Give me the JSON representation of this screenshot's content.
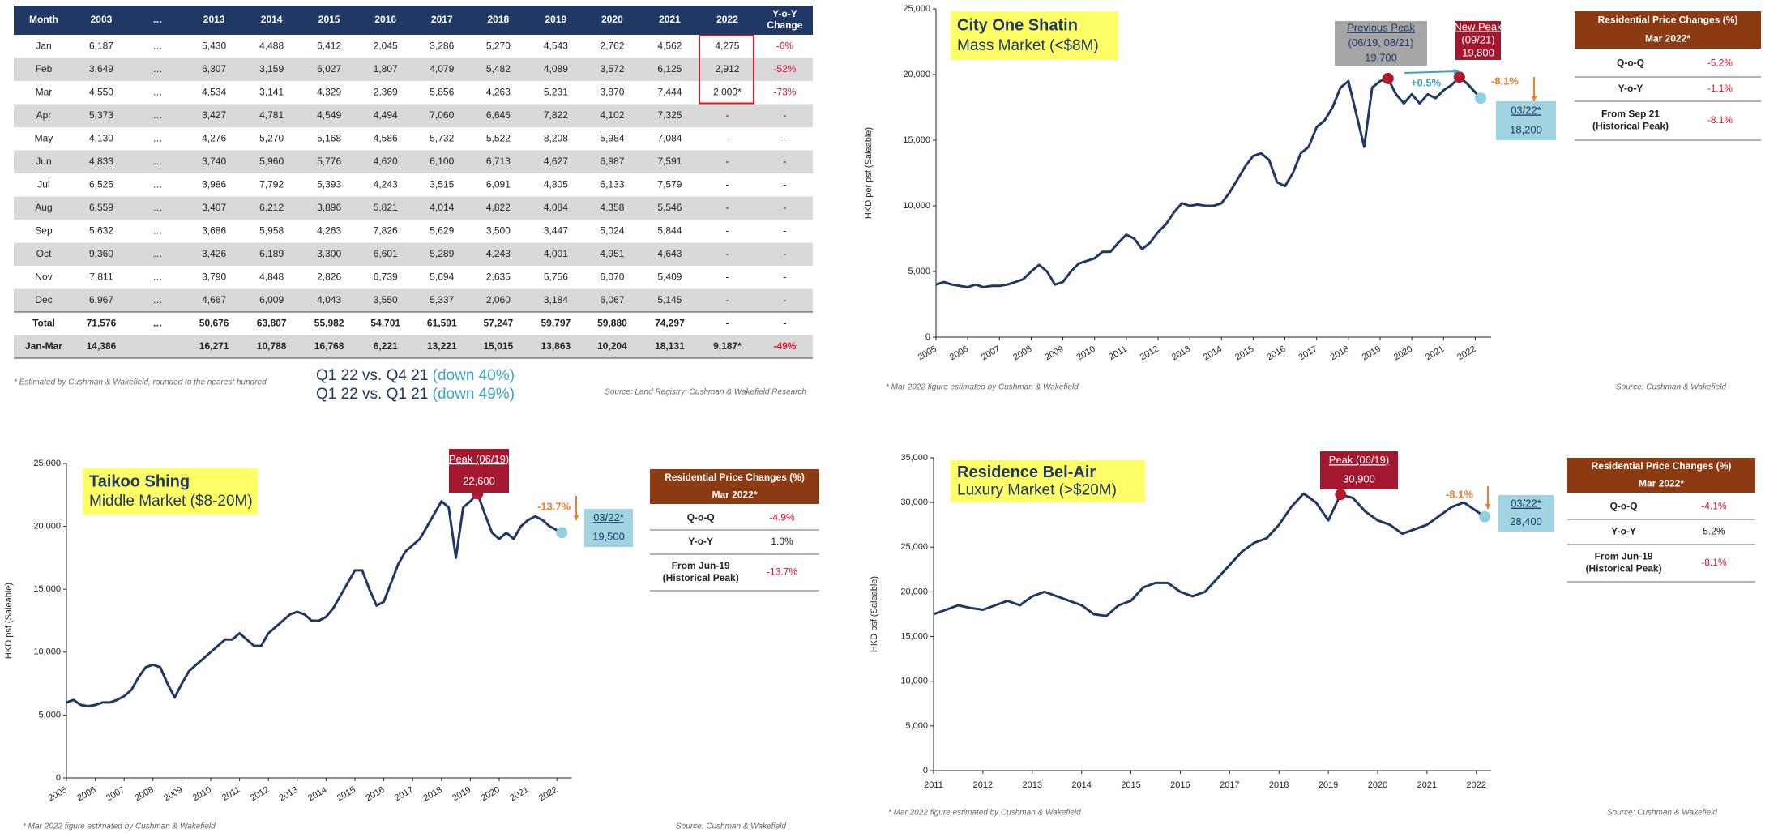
{
  "table": {
    "header": [
      "Month",
      "2003",
      "…",
      "2013",
      "2014",
      "2015",
      "2016",
      "2017",
      "2018",
      "2019",
      "2020",
      "2021",
      "2022",
      [
        "Y-o-Y",
        "Change"
      ]
    ],
    "rows": [
      [
        "Jan",
        "6,187",
        "…",
        "5,430",
        "4,488",
        "6,412",
        "2,045",
        "3,286",
        "5,270",
        "4,543",
        "2,762",
        "4,562",
        "4,275",
        "-6%"
      ],
      [
        "Feb",
        "3,649",
        "…",
        "6,307",
        "3,159",
        "6,027",
        "1,807",
        "4,079",
        "5,482",
        "4,089",
        "3,572",
        "6,125",
        "2,912",
        "-52%"
      ],
      [
        "Mar",
        "4,550",
        "…",
        "4,534",
        "3,141",
        "4,329",
        "2,369",
        "5,856",
        "4,263",
        "5,231",
        "3,870",
        "7,444",
        "2,000*",
        "-73%"
      ],
      [
        "Apr",
        "5,373",
        "…",
        "3,427",
        "4,781",
        "4,549",
        "4,494",
        "7,060",
        "6,646",
        "7,822",
        "4,102",
        "7,325",
        "-",
        "-"
      ],
      [
        "May",
        "4,130",
        "…",
        "4,276",
        "5,270",
        "5,168",
        "4,586",
        "5,732",
        "5,522",
        "8,208",
        "5,984",
        "7,084",
        "-",
        "-"
      ],
      [
        "Jun",
        "4,833",
        "…",
        "3,740",
        "5,960",
        "5,776",
        "4,620",
        "6,100",
        "6,713",
        "4,627",
        "6,987",
        "7,591",
        "-",
        "-"
      ],
      [
        "Jul",
        "6,525",
        "…",
        "3,986",
        "7,792",
        "5,393",
        "4,243",
        "3,515",
        "6,091",
        "4,805",
        "6,133",
        "7,579",
        "-",
        "-"
      ],
      [
        "Aug",
        "6,559",
        "…",
        "3,407",
        "6,212",
        "3,896",
        "5,821",
        "4,014",
        "4,822",
        "4,084",
        "4,358",
        "5,546",
        "-",
        "-"
      ],
      [
        "Sep",
        "5,632",
        "…",
        "3,686",
        "5,958",
        "4,263",
        "7,826",
        "5,629",
        "3,500",
        "3,447",
        "5,024",
        "5,844",
        "-",
        "-"
      ],
      [
        "Oct",
        "9,360",
        "…",
        "3,426",
        "6,189",
        "3,300",
        "6,601",
        "5,289",
        "4,243",
        "4,001",
        "4,951",
        "4,643",
        "-",
        "-"
      ],
      [
        "Nov",
        "7,811",
        "…",
        "3,790",
        "4,848",
        "2,826",
        "6,739",
        "5,694",
        "2,635",
        "5,756",
        "6,070",
        "5,409",
        "-",
        "-"
      ],
      [
        "Dec",
        "6,967",
        "…",
        "4,667",
        "6,009",
        "4,043",
        "3,550",
        "5,337",
        "2,060",
        "3,184",
        "6,067",
        "5,145",
        "-",
        "-"
      ],
      [
        "Total",
        "71,576",
        "…",
        "50,676",
        "63,807",
        "55,982",
        "54,701",
        "61,591",
        "57,247",
        "59,797",
        "59,880",
        "74,297",
        "-",
        "-"
      ],
      [
        "Jan-Mar",
        "14,386",
        null,
        "16,271",
        "10,788",
        "16,768",
        "6,221",
        "13,221",
        "15,015",
        "13,863",
        "10,204",
        "18,131",
        "9,187*",
        "-49%"
      ]
    ],
    "footnote": "* Estimated by Cushman & Wakefield, rounded to the nearest hundred",
    "comparisons": [
      [
        "Q1 22 vs. Q4 21",
        "(down 40%)"
      ],
      [
        "Q1 22 vs. Q1 21",
        "(down 49%)"
      ]
    ],
    "source": "Source: Land Registry; Cushman & Wakefield Research"
  },
  "chart_data": [
    {
      "type": "line",
      "title": "City One Shatin",
      "subtitle": "Mass Market (<$8M)",
      "ylabel": "HKD per psf (Saleable)",
      "x": [
        2005,
        2005.25,
        2005.5,
        2005.75,
        2006,
        2006.25,
        2006.5,
        2006.75,
        2007,
        2007.25,
        2007.5,
        2007.75,
        2008,
        2008.25,
        2008.5,
        2008.75,
        2009,
        2009.25,
        2009.5,
        2009.75,
        2010,
        2010.25,
        2010.5,
        2010.75,
        2011,
        2011.25,
        2011.5,
        2011.75,
        2012,
        2012.25,
        2012.5,
        2012.75,
        2013,
        2013.25,
        2013.5,
        2013.75,
        2014,
        2014.25,
        2014.5,
        2014.75,
        2015,
        2015.25,
        2015.5,
        2015.75,
        2016,
        2016.25,
        2016.5,
        2016.75,
        2017,
        2017.25,
        2017.5,
        2017.75,
        2018,
        2018.25,
        2018.5,
        2018.75,
        2019,
        2019.25,
        2019.5,
        2019.75,
        2020,
        2020.25,
        2020.5,
        2020.75,
        2021,
        2021.25,
        2021.5,
        2021.75,
        2022.17
      ],
      "xlim": [
        2005,
        2022.5
      ],
      "xticks": [
        2005,
        2006,
        2007,
        2008,
        2009,
        2010,
        2011,
        2012,
        2013,
        2014,
        2015,
        2016,
        2017,
        2018,
        2019,
        2020,
        2021,
        2022
      ],
      "ylim": [
        0,
        25000
      ],
      "yticks": [
        0,
        {
          "value": 5000,
          "label": "5,000"
        },
        {
          "value": 10000,
          "label": "10,000"
        },
        {
          "value": 15000,
          "label": "15,000"
        },
        {
          "value": 20000,
          "label": "20,000"
        },
        {
          "value": 25000,
          "label": "25,000"
        }
      ],
      "series": [
        {
          "color": "#1f3864",
          "values": [
            4000,
            4200,
            4000,
            3900,
            3800,
            4000,
            3800,
            3900,
            3900,
            4000,
            4200,
            4400,
            5000,
            5500,
            5000,
            4000,
            4200,
            5000,
            5600,
            5800,
            6000,
            6500,
            6500,
            7200,
            7800,
            7500,
            6700,
            7200,
            8000,
            8600,
            9500,
            10200,
            10000,
            10100,
            10000,
            10000,
            10200,
            11000,
            12000,
            13000,
            13800,
            14000,
            13500,
            11800,
            11500,
            12500,
            14000,
            14500,
            16000,
            16500,
            17500,
            19000,
            19500,
            17000,
            14500,
            19000,
            19500,
            19700,
            18500,
            17800,
            18500,
            17800,
            18500,
            18200,
            18800,
            19200,
            19800,
            19300,
            18200
          ]
        }
      ],
      "annotations": [
        {
          "lines": [
            "Previous Peak",
            "(06/19, 08/21)",
            "19,700"
          ],
          "color": "#a6a6a6"
        },
        {
          "lines": [
            "New Peak",
            "(09/21)",
            "19,800"
          ],
          "color": "#a3182f"
        },
        {
          "text": "+0.5%",
          "color": "#3ba3c6"
        },
        {
          "text": "-8.1%",
          "color": "#f07c28"
        },
        {
          "lines": [
            "03/22*",
            "18,200"
          ],
          "color": "#9fd4e0"
        }
      ],
      "summary": {
        "title": [
          "Residential Price Changes (%)",
          "Mar 2022*"
        ],
        "rows": [
          {
            "label": [
              "Q-o-Q"
            ],
            "value": "-5.2%"
          },
          {
            "label": [
              "Y-o-Y"
            ],
            "value": "-1.1%"
          },
          {
            "label": [
              "From Sep 21",
              "(Historical Peak)"
            ],
            "value": "-8.1%"
          }
        ]
      },
      "footnote": "* Mar 2022 figure estimated by Cushman & Wakefield",
      "source": "Source: Cushman & Wakefield"
    },
    {
      "type": "line",
      "title": "Taikoo Shing",
      "subtitle": "Middle Market ($8-20M)",
      "ylabel": "HKD psf (Saleable)",
      "x": [
        2005,
        2005.25,
        2005.5,
        2005.75,
        2006,
        2006.25,
        2006.5,
        2006.75,
        2007,
        2007.25,
        2007.5,
        2007.75,
        2008,
        2008.25,
        2008.5,
        2008.75,
        2009,
        2009.25,
        2009.5,
        2009.75,
        2010,
        2010.25,
        2010.5,
        2010.75,
        2011,
        2011.25,
        2011.5,
        2011.75,
        2012,
        2012.25,
        2012.5,
        2012.75,
        2013,
        2013.25,
        2013.5,
        2013.75,
        2014,
        2014.25,
        2014.5,
        2014.75,
        2015,
        2015.25,
        2015.5,
        2015.75,
        2016,
        2016.25,
        2016.5,
        2016.75,
        2017,
        2017.25,
        2017.5,
        2017.75,
        2018,
        2018.25,
        2018.5,
        2018.75,
        2019,
        2019.25,
        2019.5,
        2019.75,
        2020,
        2020.25,
        2020.5,
        2020.75,
        2021,
        2021.25,
        2021.5,
        2021.75,
        2022.17
      ],
      "xlim": [
        2005,
        2022.5
      ],
      "xticks": [
        2005,
        2006,
        2007,
        2008,
        2009,
        2010,
        2011,
        2012,
        2013,
        2014,
        2015,
        2016,
        2017,
        2018,
        2019,
        2020,
        2021,
        2022
      ],
      "ylim": [
        0,
        25000
      ],
      "yticks": [
        0,
        {
          "value": 5000,
          "label": "5,000"
        },
        {
          "value": 10000,
          "label": "10,000"
        },
        {
          "value": 15000,
          "label": "15,000"
        },
        {
          "value": 20000,
          "label": "20,000"
        },
        {
          "value": 25000,
          "label": "25,000"
        }
      ],
      "series": [
        {
          "color": "#1f3864",
          "values": [
            6000,
            6200,
            5800,
            5700,
            5800,
            6000,
            6000,
            6200,
            6500,
            7000,
            8000,
            8800,
            9000,
            8800,
            7500,
            6400,
            7500,
            8500,
            9000,
            9500,
            10000,
            10500,
            11000,
            11000,
            11500,
            11000,
            10500,
            10500,
            11500,
            12000,
            12500,
            13000,
            13200,
            13000,
            12500,
            12500,
            12800,
            13500,
            14500,
            15500,
            16500,
            16500,
            15000,
            13700,
            14000,
            15500,
            17000,
            18000,
            18500,
            19000,
            20000,
            21000,
            22000,
            21500,
            17500,
            21500,
            22000,
            22600,
            21000,
            19500,
            19000,
            19500,
            19000,
            20000,
            20500,
            20800,
            20500,
            20000,
            19500
          ]
        }
      ],
      "annotations": [
        {
          "lines": [
            "Peak (06/19)",
            "22,600"
          ],
          "color": "#a3182f"
        },
        {
          "text": "-13.7%",
          "color": "#f07c28"
        },
        {
          "lines": [
            "03/22*",
            "19,500"
          ],
          "color": "#9fd4e0"
        }
      ],
      "summary": {
        "title": [
          "Residential Price Changes (%)",
          "Mar 2022*"
        ],
        "rows": [
          {
            "label": [
              "Q-o-Q"
            ],
            "value": "-4.9%"
          },
          {
            "label": [
              "Y-o-Y"
            ],
            "value": "1.0%"
          },
          {
            "label": [
              "From Jun-19",
              "(Historical Peak)"
            ],
            "value": "-13.7%"
          }
        ]
      },
      "footnote": "* Mar 2022 figure estimated by Cushman & Wakefield",
      "source": "Source: Cushman & Wakefield"
    },
    {
      "type": "line",
      "title": "Residence Bel-Air",
      "subtitle": "Luxury Market (>$20M)",
      "ylabel": "HKD psf (Saleable)",
      "x": [
        2011,
        2011.25,
        2011.5,
        2011.75,
        2012,
        2012.25,
        2012.5,
        2012.75,
        2013,
        2013.25,
        2013.5,
        2013.75,
        2014,
        2014.25,
        2014.5,
        2014.75,
        2015,
        2015.25,
        2015.5,
        2015.75,
        2016,
        2016.25,
        2016.5,
        2016.75,
        2017,
        2017.25,
        2017.5,
        2017.75,
        2018,
        2018.25,
        2018.5,
        2018.75,
        2019,
        2019.25,
        2019.5,
        2019.75,
        2020,
        2020.25,
        2020.5,
        2020.75,
        2021,
        2021.25,
        2021.5,
        2021.75,
        2022.17
      ],
      "xlim": [
        2011,
        2022.3
      ],
      "xticks": [
        2011,
        2012,
        2013,
        2014,
        2015,
        2016,
        2017,
        2018,
        2019,
        2020,
        2021,
        2022
      ],
      "ylim": [
        0,
        35000
      ],
      "yticks": [
        0,
        {
          "value": 5000,
          "label": "5,000"
        },
        {
          "value": 10000,
          "label": "10,000"
        },
        {
          "value": 15000,
          "label": "15,000"
        },
        {
          "value": 20000,
          "label": "20,000"
        },
        {
          "value": 25000,
          "label": "25,000"
        },
        {
          "value": 30000,
          "label": "30,000"
        },
        {
          "value": 35000,
          "label": "35,000"
        }
      ],
      "series": [
        {
          "color": "#1f3864",
          "values": [
            17500,
            18000,
            18500,
            18200,
            18000,
            18500,
            19000,
            18500,
            19500,
            20000,
            19500,
            19000,
            18500,
            17500,
            17300,
            18500,
            19000,
            20500,
            21000,
            21000,
            20000,
            19500,
            20000,
            21500,
            23000,
            24500,
            25500,
            26000,
            27500,
            29500,
            31000,
            30000,
            28000,
            30900,
            30500,
            29000,
            28000,
            27500,
            26500,
            27000,
            27500,
            28500,
            29500,
            30000,
            28400
          ]
        }
      ],
      "annotations": [
        {
          "lines": [
            "Peak (06/19)",
            "30,900"
          ],
          "color": "#a3182f"
        },
        {
          "text": "-8.1%",
          "color": "#f07c28"
        },
        {
          "lines": [
            "03/22*",
            "28,400"
          ],
          "color": "#9fd4e0"
        }
      ],
      "summary": {
        "title": [
          "Residential Price Changes (%)",
          "Mar 2022*"
        ],
        "rows": [
          {
            "label": [
              "Q-o-Q"
            ],
            "value": "-4.1%"
          },
          {
            "label": [
              "Y-o-Y"
            ],
            "value": "5.2%"
          },
          {
            "label": [
              "From Jun-19",
              "(Historical Peak)"
            ],
            "value": "-8.1%"
          }
        ]
      },
      "footnote": "* Mar 2022 figure estimated by Cushman & Wakefield",
      "source": "Source: Cushman & Wakefield"
    }
  ]
}
